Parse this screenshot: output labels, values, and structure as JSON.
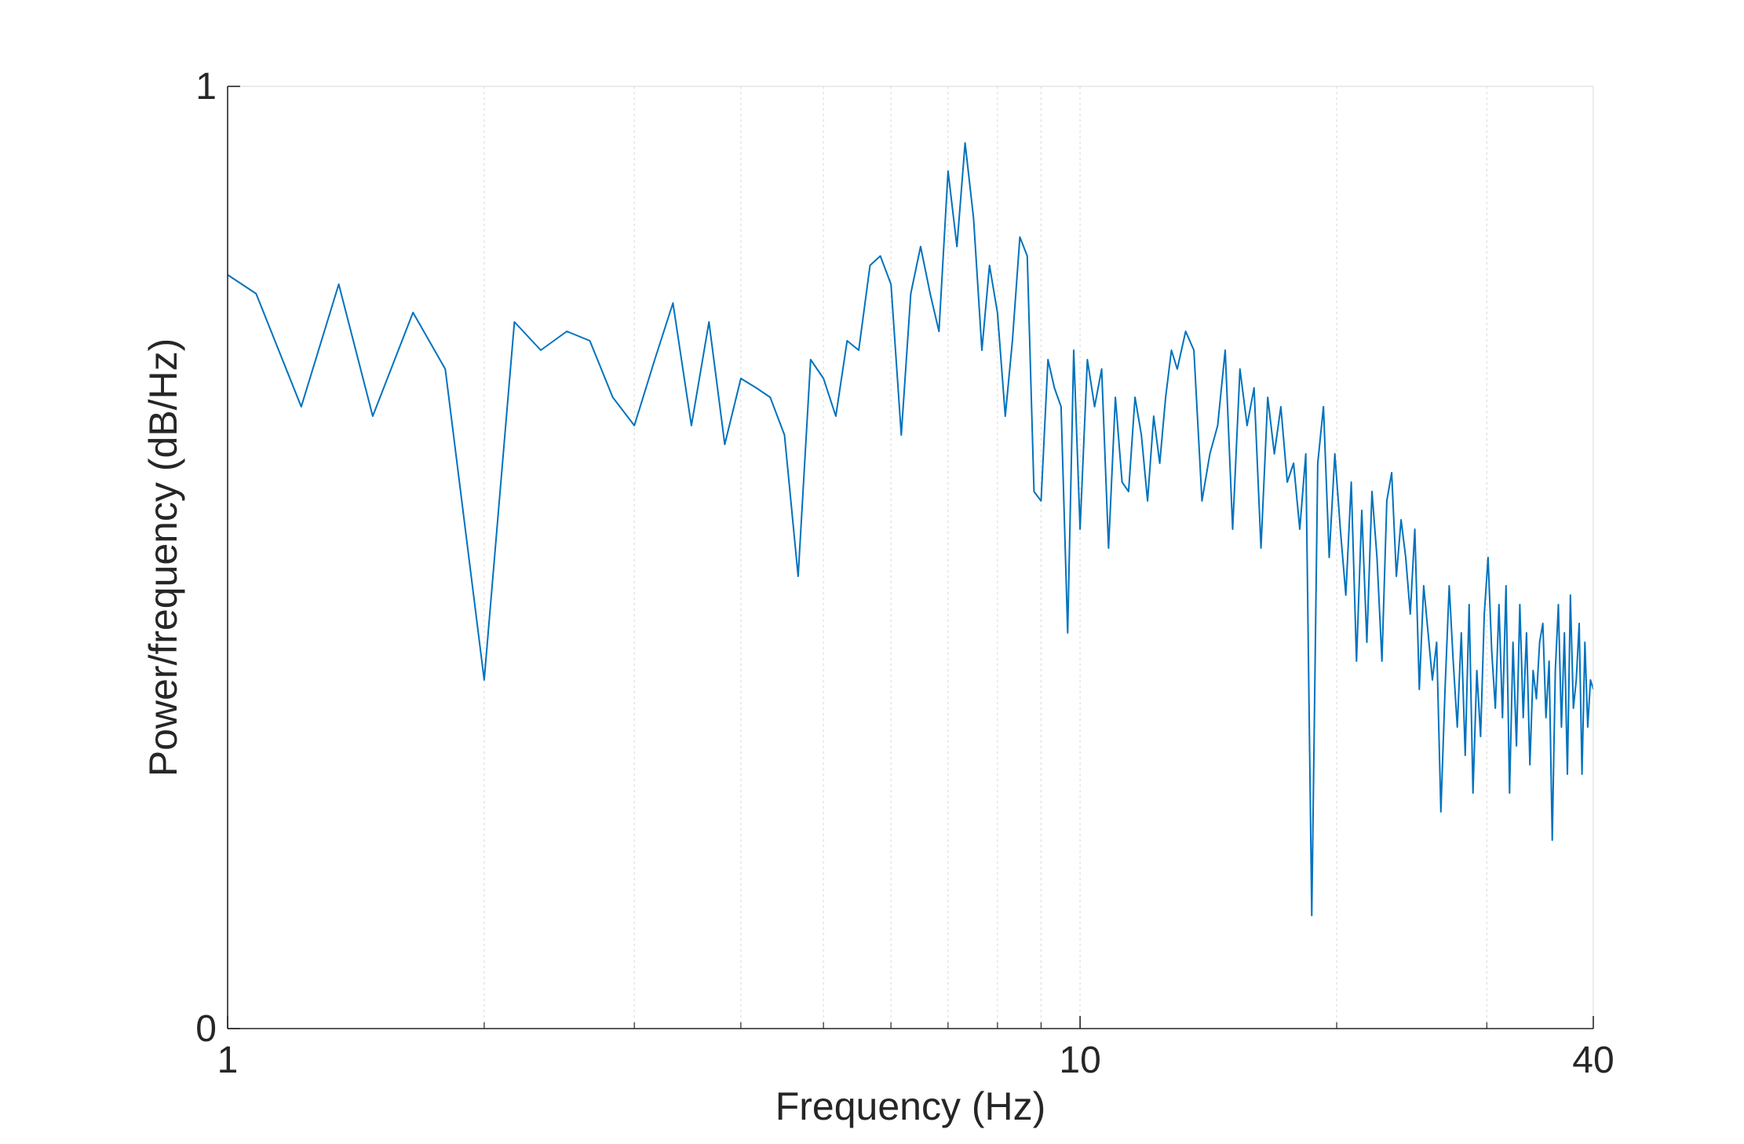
{
  "chart_data": {
    "type": "line",
    "title": "",
    "xlabel": "Frequency (Hz)",
    "ylabel": "Power/frequency (dB/Hz)",
    "xscale": "log",
    "xlim": [
      1,
      40
    ],
    "ylim": [
      0,
      1
    ],
    "xticks": [
      1,
      10,
      40
    ],
    "xtick_labels": [
      "1",
      "10",
      "40"
    ],
    "yticks": [
      0,
      1
    ],
    "ytick_labels": [
      "0",
      "1"
    ],
    "grid": "vertical minor (log decades)",
    "legend": "none",
    "series": [
      {
        "color": "#0072BD",
        "x": [
          1.0,
          1.08,
          1.22,
          1.35,
          1.48,
          1.65,
          1.8,
          2.0,
          2.17,
          2.33,
          2.5,
          2.66,
          2.83,
          3.0,
          3.17,
          3.33,
          3.5,
          3.67,
          3.83,
          4.0,
          4.17,
          4.33,
          4.5,
          4.67,
          4.83,
          5.0,
          5.17,
          5.33,
          5.5,
          5.67,
          5.83,
          6.0,
          6.17,
          6.33,
          6.5,
          6.67,
          6.83,
          7.0,
          7.17,
          7.33,
          7.5,
          7.67,
          7.83,
          8.0,
          8.17,
          8.33,
          8.5,
          8.67,
          8.83,
          9.0,
          9.17,
          9.33,
          9.5,
          9.67,
          9.83,
          10.0,
          10.2,
          10.4,
          10.6,
          10.8,
          11.0,
          11.2,
          11.4,
          11.6,
          11.8,
          12.0,
          12.2,
          12.4,
          12.6,
          12.8,
          13.0,
          13.3,
          13.6,
          13.9,
          14.2,
          14.5,
          14.8,
          15.1,
          15.4,
          15.7,
          16.0,
          16.3,
          16.6,
          16.9,
          17.2,
          17.5,
          17.8,
          18.1,
          18.4,
          18.7,
          19.0,
          19.3,
          19.6,
          19.9,
          20.2,
          20.5,
          20.8,
          21.1,
          21.4,
          21.7,
          22.0,
          22.3,
          22.6,
          22.9,
          23.2,
          23.5,
          23.8,
          24.1,
          24.4,
          24.7,
          25.0,
          25.3,
          25.6,
          25.9,
          26.2,
          26.5,
          26.8,
          27.1,
          27.4,
          27.7,
          28.0,
          28.3,
          28.6,
          28.9,
          29.2,
          29.5,
          29.8,
          30.1,
          30.4,
          30.7,
          31.0,
          31.3,
          31.6,
          31.9,
          32.2,
          32.5,
          32.8,
          33.1,
          33.4,
          33.7,
          34.0,
          34.3,
          34.6,
          34.9,
          35.2,
          35.5,
          35.8,
          36.1,
          36.4,
          36.7,
          37.0,
          37.3,
          37.6,
          37.9,
          38.2,
          38.5,
          38.8,
          39.1,
          39.4,
          39.7,
          40.0
        ],
        "y": [
          0.8,
          0.78,
          0.66,
          0.79,
          0.65,
          0.76,
          0.7,
          0.37,
          0.75,
          0.72,
          0.74,
          0.73,
          0.67,
          0.64,
          0.71,
          0.77,
          0.64,
          0.75,
          0.62,
          0.69,
          0.68,
          0.67,
          0.63,
          0.48,
          0.71,
          0.69,
          0.65,
          0.73,
          0.72,
          0.81,
          0.82,
          0.79,
          0.63,
          0.78,
          0.83,
          0.78,
          0.74,
          0.91,
          0.83,
          0.94,
          0.86,
          0.72,
          0.81,
          0.76,
          0.65,
          0.73,
          0.84,
          0.82,
          0.57,
          0.56,
          0.71,
          0.68,
          0.66,
          0.42,
          0.72,
          0.53,
          0.71,
          0.66,
          0.7,
          0.51,
          0.67,
          0.58,
          0.57,
          0.67,
          0.63,
          0.56,
          0.65,
          0.6,
          0.67,
          0.72,
          0.7,
          0.74,
          0.72,
          0.56,
          0.61,
          0.64,
          0.72,
          0.53,
          0.7,
          0.64,
          0.68,
          0.51,
          0.67,
          0.61,
          0.66,
          0.58,
          0.6,
          0.53,
          0.61,
          0.12,
          0.6,
          0.66,
          0.5,
          0.61,
          0.53,
          0.46,
          0.58,
          0.39,
          0.55,
          0.41,
          0.57,
          0.5,
          0.39,
          0.56,
          0.59,
          0.48,
          0.54,
          0.5,
          0.44,
          0.53,
          0.36,
          0.47,
          0.42,
          0.37,
          0.41,
          0.23,
          0.36,
          0.47,
          0.39,
          0.32,
          0.42,
          0.29,
          0.45,
          0.25,
          0.38,
          0.31,
          0.44,
          0.5,
          0.4,
          0.34,
          0.45,
          0.33,
          0.47,
          0.25,
          0.41,
          0.3,
          0.45,
          0.33,
          0.42,
          0.28,
          0.38,
          0.35,
          0.41,
          0.43,
          0.33,
          0.39,
          0.2,
          0.38,
          0.45,
          0.32,
          0.42,
          0.27,
          0.46,
          0.34,
          0.37,
          0.43,
          0.27,
          0.41,
          0.32,
          0.37,
          0.36
        ]
      }
    ]
  }
}
